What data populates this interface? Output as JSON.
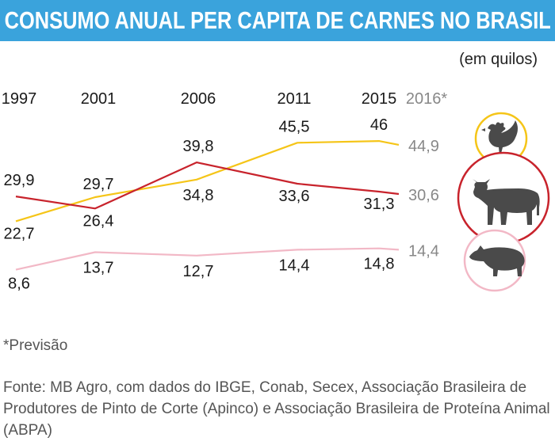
{
  "title": "CONSUMO ANUAL PER CAPITA DE CARNES NO BRASIL",
  "unit_label": "(em quilos)",
  "footnote": "*Previsão",
  "source": "Fonte: MB Agro, com dados do IBGE, Conab, Secex, Associação Brasileira de Produtores de Pinto de Corte (Apinco) e Associação Brasileira de Proteína Animal (ABPA)",
  "colors": {
    "title_bg": "#3aa3dc",
    "frango": "#f5c518",
    "bovina": "#c8232c",
    "suina": "#f2b8c6",
    "forecast_text": "#888888"
  },
  "icons": [
    "chicken-icon",
    "cow-icon",
    "pig-icon"
  ],
  "chart_data": {
    "type": "line",
    "categories": [
      "1997",
      "2001",
      "2006",
      "2011",
      "2015",
      "2016*"
    ],
    "forecast_category": "2016*",
    "series": [
      {
        "key": "frango",
        "icon": "chicken-icon",
        "values": [
          22.7,
          29.7,
          34.8,
          45.5,
          46,
          44.9
        ]
      },
      {
        "key": "bovina",
        "icon": "cow-icon",
        "values": [
          29.9,
          26.4,
          39.8,
          33.6,
          31.3,
          30.6
        ]
      },
      {
        "key": "suina",
        "icon": "pig-icon",
        "values": [
          8.6,
          13.7,
          12.7,
          14.4,
          14.8,
          14.4
        ]
      }
    ],
    "value_labels": [
      [
        "22,7",
        "29,7",
        "34,8",
        "45,5",
        "46",
        "44,9"
      ],
      [
        "29,9",
        "26,4",
        "39,8",
        "33,6",
        "31,3",
        "30,6"
      ],
      [
        "8,6",
        "13,7",
        "12,7",
        "14,4",
        "14,8",
        "14,4"
      ]
    ],
    "grid": false,
    "legend": "icons-right"
  }
}
